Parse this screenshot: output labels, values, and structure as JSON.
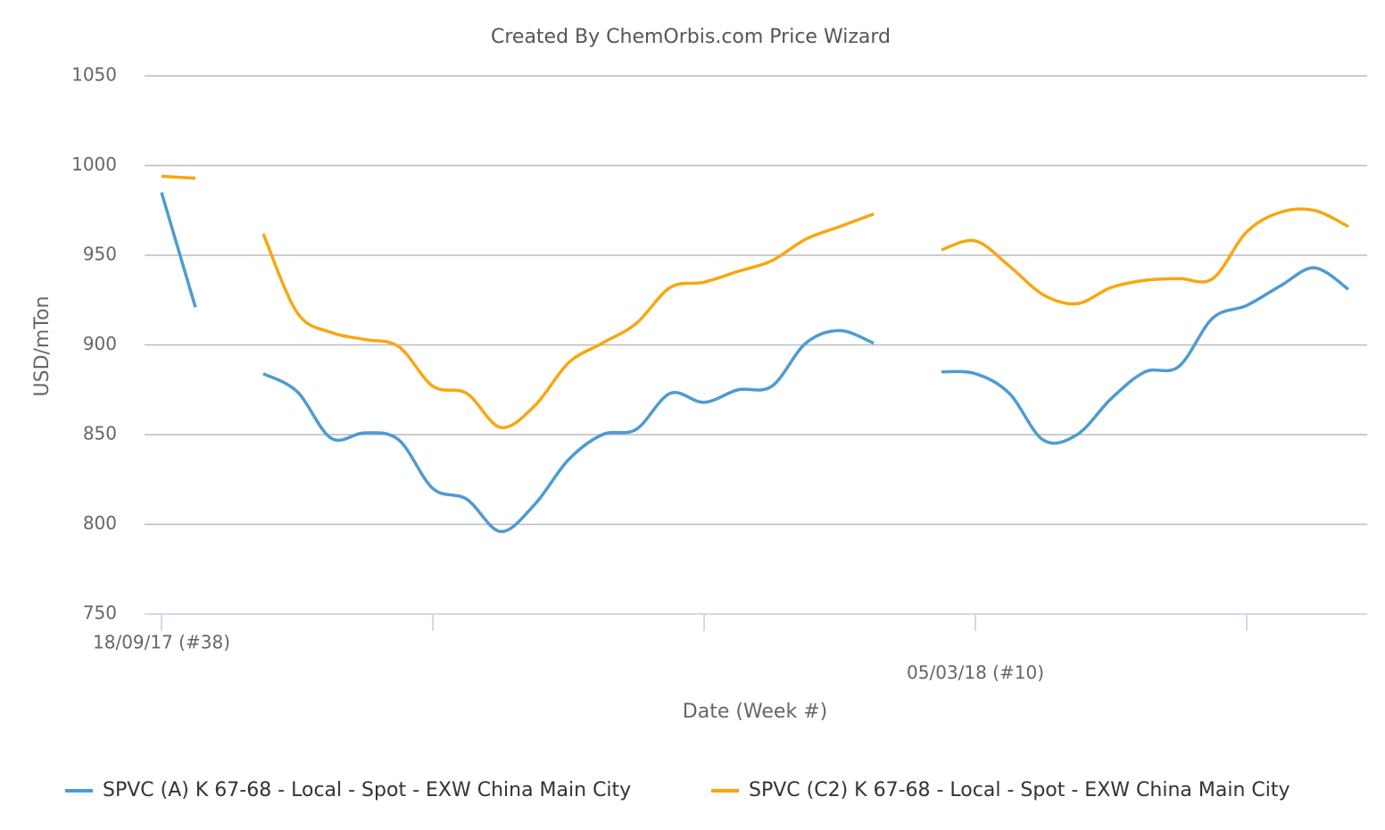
{
  "chart_data": {
    "type": "line",
    "title": "Created By ChemOrbis.com Price Wizard",
    "x_label": "Date (Week #)",
    "y_label": "USD/mTon",
    "categories": [
      "18/09/17 (#38)",
      null,
      null,
      null,
      null,
      null,
      null,
      null,
      null,
      null,
      null,
      null,
      null,
      null,
      null,
      null,
      null,
      null,
      null,
      null,
      null,
      null,
      null,
      null,
      "05/03/18 (#10)",
      null,
      null,
      null,
      null,
      null,
      null,
      null,
      null,
      null,
      null,
      null
    ],
    "series": [
      {
        "name": "SPVC (A) K 67-68 - Local - Spot - EXW China Main City",
        "color": "#4e9bd2",
        "values": [
          985,
          921,
          null,
          884,
          874,
          848,
          851,
          847,
          820,
          814,
          796,
          811,
          836,
          850,
          853,
          873,
          868,
          875,
          877,
          901,
          908,
          901,
          null,
          885,
          884,
          873,
          847,
          850,
          870,
          885,
          888,
          915,
          922,
          933,
          943,
          931
        ]
      },
      {
        "name": "SPVC (C2) K 67-68 - Local - Spot - EXW China Main City",
        "color": "#f7a712",
        "values": [
          994,
          993,
          null,
          962,
          918,
          907,
          903,
          899,
          877,
          873,
          854,
          866,
          890,
          901,
          912,
          932,
          935,
          941,
          947,
          959,
          966,
          973,
          null,
          953,
          958,
          944,
          928,
          923,
          932,
          936,
          937,
          937,
          963,
          974,
          975,
          966
        ]
      }
    ],
    "ylim": [
      750,
      1050
    ],
    "yticks": [
      750,
      800,
      850,
      900,
      950,
      1000,
      1050
    ],
    "grid": true,
    "legend": "bottom"
  }
}
